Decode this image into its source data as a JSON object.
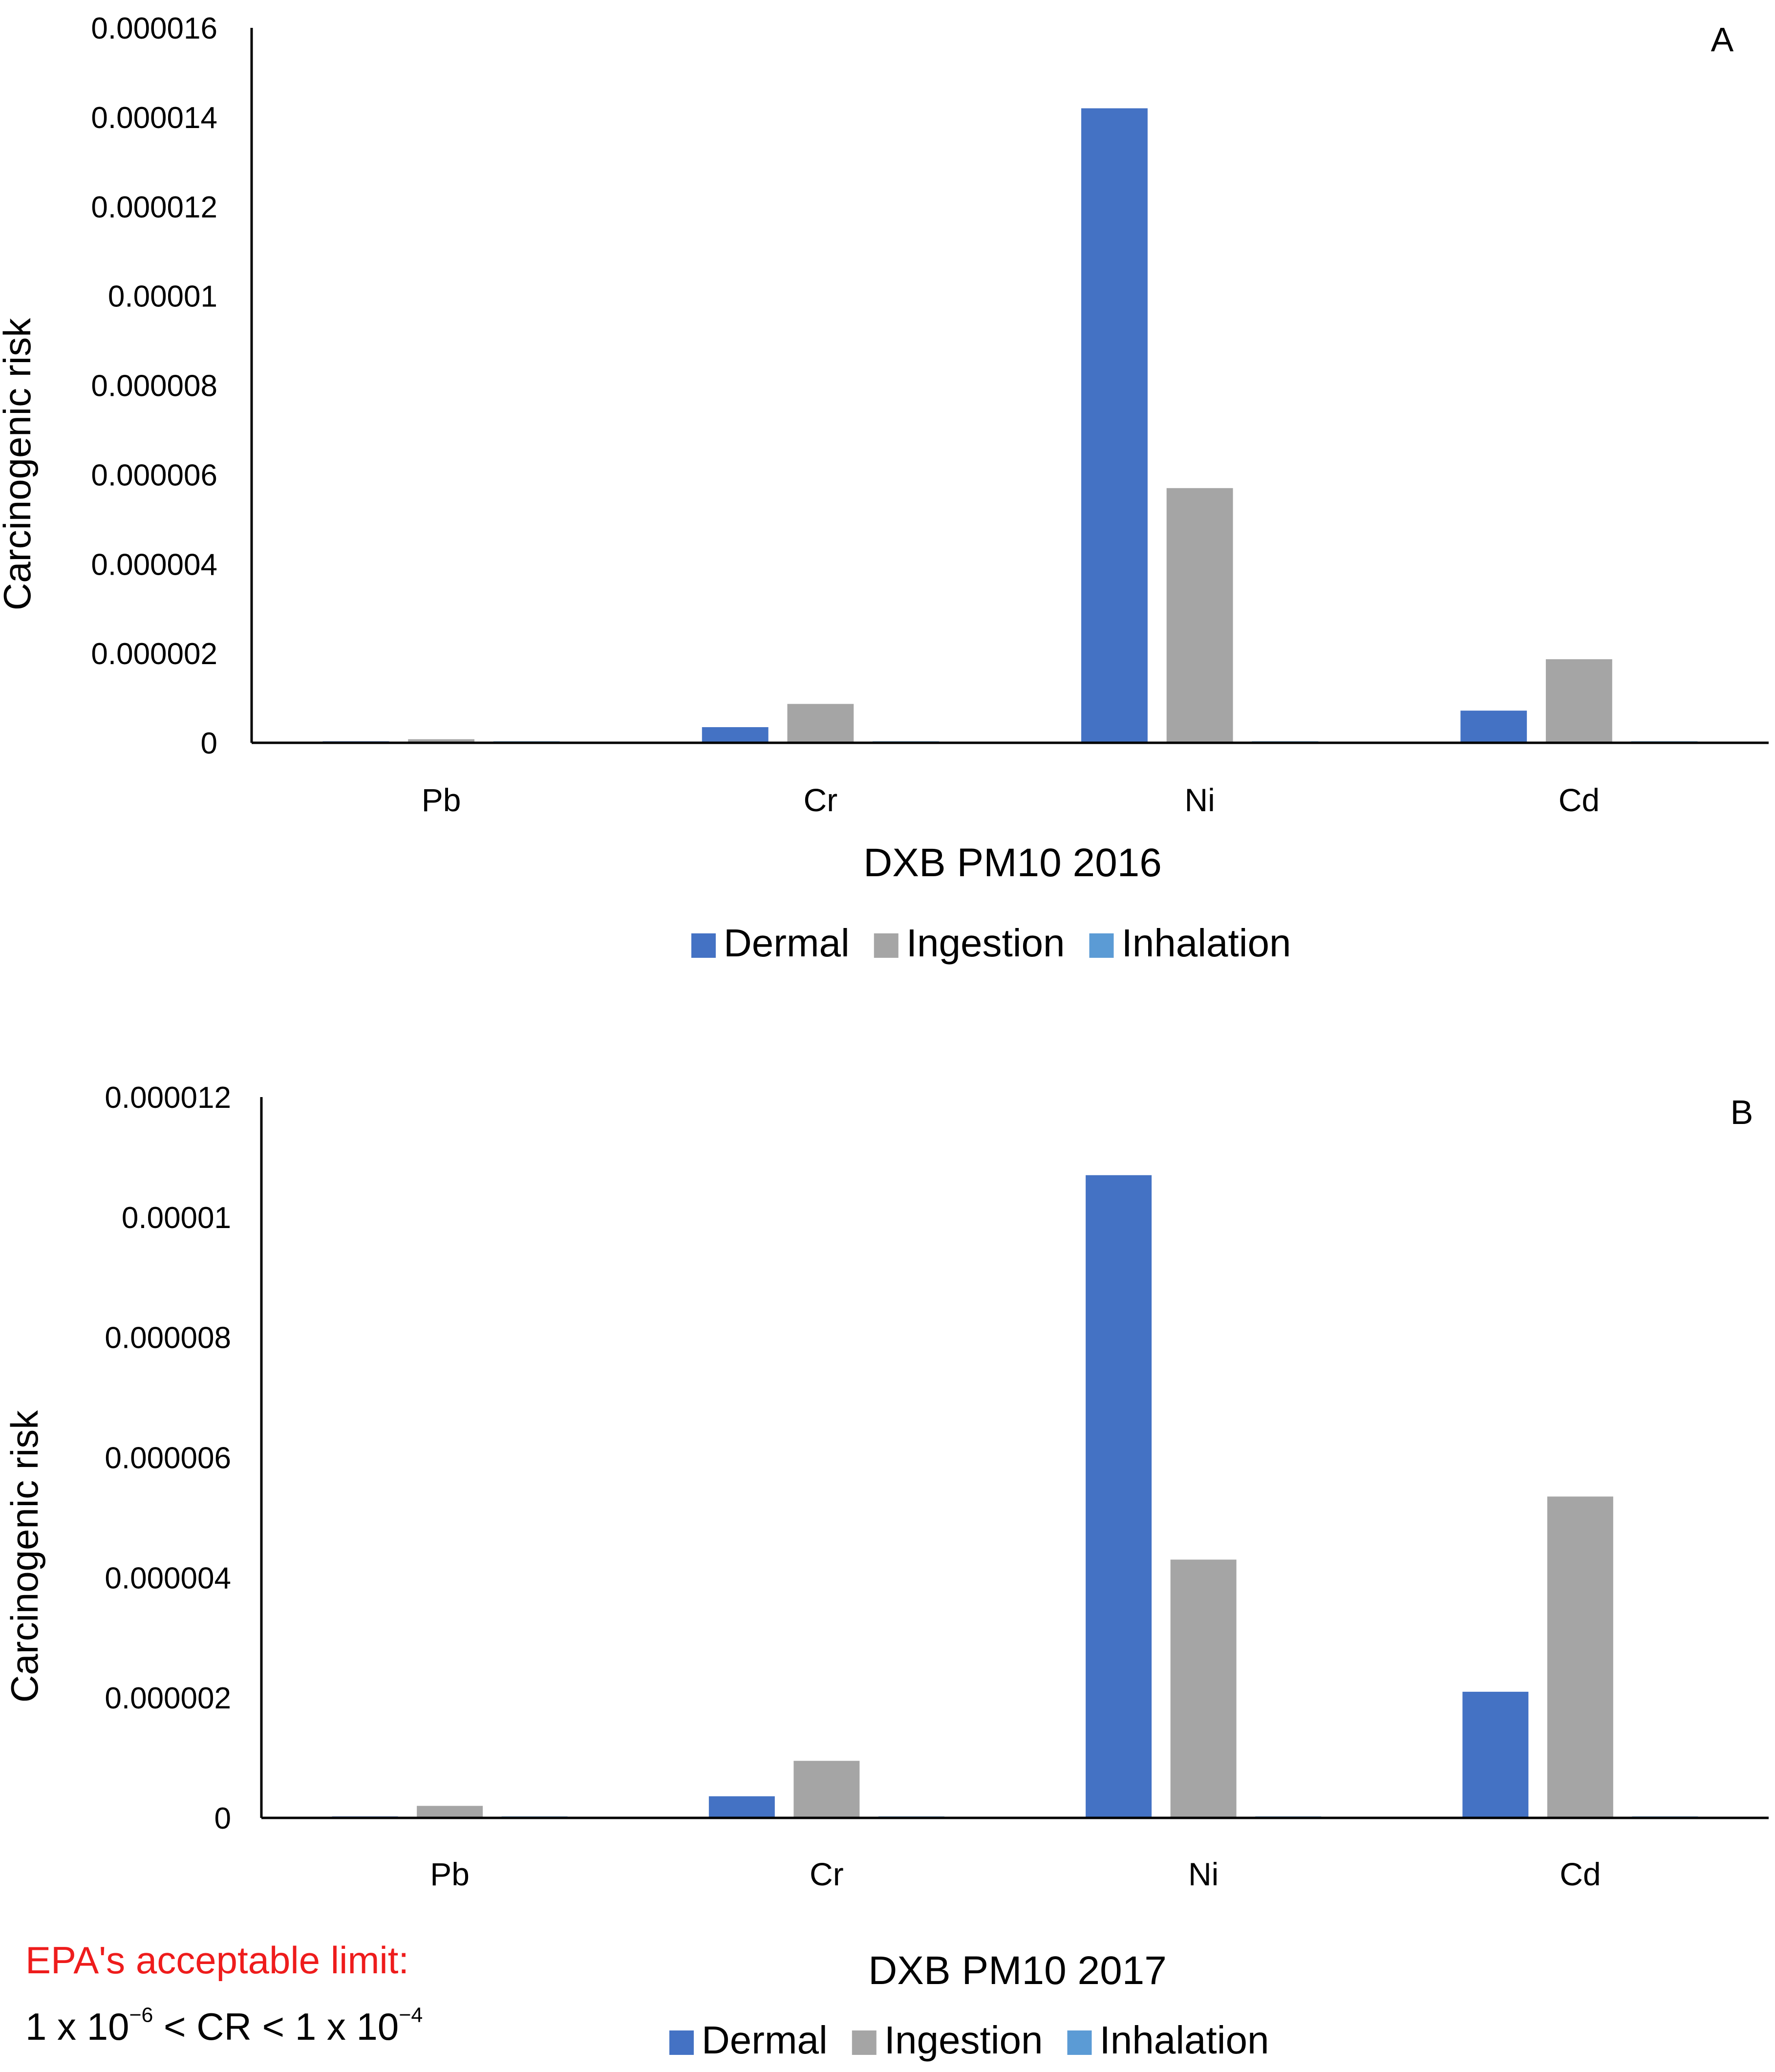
{
  "figure": {
    "panels": 2
  },
  "colors": {
    "dermal": "#4472c4",
    "ingestion": "#a5a5a5",
    "inhalation": "#5b9bd5",
    "axis": "#000000",
    "note": "#ee1c1c"
  },
  "chart_data": [
    {
      "type": "bar",
      "panel_label": "A",
      "title": "",
      "xlabel": "DXB PM10 2016",
      "ylabel": "Carcinogenic risk",
      "categories": [
        "Pb",
        "Cr",
        "Ni",
        "Cd"
      ],
      "ylim": [
        0,
        1.6e-05
      ],
      "yticks": [
        0,
        2e-06,
        4e-06,
        6e-06,
        8e-06,
        1e-05,
        1.2e-05,
        1.4e-05,
        1.6e-05
      ],
      "ytick_labels": [
        "0",
        "0.000002",
        "0.000004",
        "0.000006",
        "0.000008",
        "0.00001",
        "0.000012",
        "0.000014",
        "0.000016"
      ],
      "grid": false,
      "legend_position": "bottom",
      "series": [
        {
          "name": "Dermal",
          "color": "#4472c4",
          "values": [
            3e-08,
            3.5e-07,
            1.42e-05,
            7.2e-07
          ]
        },
        {
          "name": "Ingestion",
          "color": "#a5a5a5",
          "values": [
            8e-08,
            8.7e-07,
            5.7e-06,
            1.87e-06
          ]
        },
        {
          "name": "Inhalation",
          "color": "#5b9bd5",
          "values": [
            5e-09,
            6e-09,
            3e-08,
            8e-09
          ]
        }
      ]
    },
    {
      "type": "bar",
      "panel_label": "B",
      "title": "",
      "xlabel": "DXB PM10 2017",
      "ylabel": "Carcinogenic risk",
      "categories": [
        "Pb",
        "Cr",
        "Ni",
        "Cd"
      ],
      "ylim": [
        0,
        1.2e-05
      ],
      "yticks": [
        0,
        2e-06,
        4e-06,
        6e-06,
        8e-06,
        1e-05,
        1.2e-05
      ],
      "ytick_labels": [
        "0",
        "0.000002",
        "0.000004",
        "0.000006",
        "0.000008",
        "0.00001",
        "0.000012"
      ],
      "grid": false,
      "legend_position": "bottom",
      "series": [
        {
          "name": "Dermal",
          "color": "#4472c4",
          "values": [
            2e-08,
            3.6e-07,
            1.07e-05,
            2.1e-06
          ]
        },
        {
          "name": "Ingestion",
          "color": "#a5a5a5",
          "values": [
            2e-07,
            9.5e-07,
            4.3e-06,
            5.35e-06
          ]
        },
        {
          "name": "Inhalation",
          "color": "#5b9bd5",
          "values": [
            5e-09,
            6e-09,
            2e-08,
            8e-09
          ]
        }
      ]
    }
  ],
  "note": {
    "title": "EPA's acceptable limit:",
    "formula_left": "1 x 10",
    "exp_low": "−6",
    "formula_mid": " < CR < 1 x 10",
    "exp_high": "−4"
  }
}
